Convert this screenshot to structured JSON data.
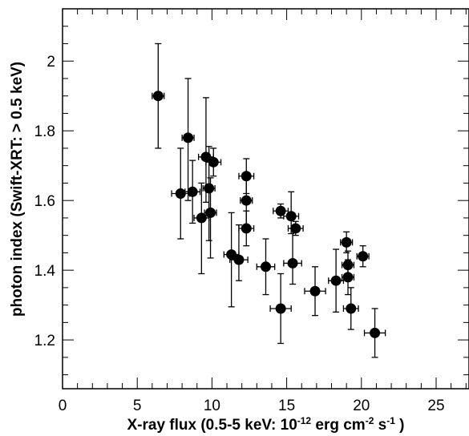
{
  "chart_data": {
    "type": "scatter",
    "title": "",
    "xlabel": "X-ray flux (0.5-5 keV: 10^-12 erg cm^-2 s^-1 )",
    "ylabel": "photon index (Swift-XRT: > 0.5 keV)",
    "xlim": [
      0,
      27.2
    ],
    "ylim": [
      1.06,
      2.15
    ],
    "grid": false,
    "x_ticks": [
      0,
      5,
      10,
      15,
      20,
      25
    ],
    "y_ticks": [
      1.2,
      1.4,
      1.6,
      1.8,
      2.0
    ],
    "y_tick_labels": [
      "1.2",
      "1.4",
      "1.6",
      "1.8",
      "2"
    ],
    "points": [
      {
        "x": 6.4,
        "y": 1.9,
        "xerr": 0.4,
        "yerr_low": 0.15,
        "yerr_high": 0.15
      },
      {
        "x": 8.4,
        "y": 1.78,
        "xerr": 0.4,
        "yerr_low": 0.18,
        "yerr_high": 0.17
      },
      {
        "x": 7.9,
        "y": 1.62,
        "xerr": 0.6,
        "yerr_low": 0.13,
        "yerr_high": 0.13
      },
      {
        "x": 8.7,
        "y": 1.625,
        "xerr": 0.5,
        "yerr_low": 0.09,
        "yerr_high": 0.09
      },
      {
        "x": 9.6,
        "y": 1.725,
        "xerr": 0.5,
        "yerr_low": 0.13,
        "yerr_high": 0.17
      },
      {
        "x": 10.1,
        "y": 1.71,
        "xerr": 0.5,
        "yerr_low": 0.04,
        "yerr_high": 0.04
      },
      {
        "x": 9.8,
        "y": 1.635,
        "xerr": 0.4,
        "yerr_low": 0.15,
        "yerr_high": 0.12
      },
      {
        "x": 9.3,
        "y": 1.55,
        "xerr": 0.5,
        "yerr_low": 0.16,
        "yerr_high": 0.1
      },
      {
        "x": 9.9,
        "y": 1.565,
        "xerr": 0.4,
        "yerr_low": 0.13,
        "yerr_high": 0.1
      },
      {
        "x": 12.3,
        "y": 1.67,
        "xerr": 0.5,
        "yerr_low": 0.05,
        "yerr_high": 0.05
      },
      {
        "x": 12.3,
        "y": 1.6,
        "xerr": 0.4,
        "yerr_low": 0.08,
        "yerr_high": 0.07
      },
      {
        "x": 12.3,
        "y": 1.52,
        "xerr": 0.5,
        "yerr_low": 0.05,
        "yerr_high": 0.05
      },
      {
        "x": 11.3,
        "y": 1.445,
        "xerr": 0.5,
        "yerr_low": 0.15,
        "yerr_high": 0.12
      },
      {
        "x": 11.8,
        "y": 1.43,
        "xerr": 0.6,
        "yerr_low": 0.06,
        "yerr_high": 0.1
      },
      {
        "x": 13.6,
        "y": 1.41,
        "xerr": 0.6,
        "yerr_low": 0.08,
        "yerr_high": 0.08
      },
      {
        "x": 14.6,
        "y": 1.57,
        "xerr": 0.5,
        "yerr_low": 0.02,
        "yerr_high": 0.02
      },
      {
        "x": 15.3,
        "y": 1.555,
        "xerr": 0.5,
        "yerr_low": 0.05,
        "yerr_high": 0.07
      },
      {
        "x": 15.6,
        "y": 1.52,
        "xerr": 0.5,
        "yerr_low": 0.02,
        "yerr_high": 0.02
      },
      {
        "x": 15.4,
        "y": 1.42,
        "xerr": 0.6,
        "yerr_low": 0.06,
        "yerr_high": 0.1
      },
      {
        "x": 14.6,
        "y": 1.29,
        "xerr": 0.7,
        "yerr_low": 0.1,
        "yerr_high": 0.1
      },
      {
        "x": 16.9,
        "y": 1.34,
        "xerr": 0.7,
        "yerr_low": 0.07,
        "yerr_high": 0.07
      },
      {
        "x": 18.3,
        "y": 1.37,
        "xerr": 0.5,
        "yerr_low": 0.09,
        "yerr_high": 0.09
      },
      {
        "x": 19.0,
        "y": 1.48,
        "xerr": 0.4,
        "yerr_low": 0.03,
        "yerr_high": 0.03
      },
      {
        "x": 19.1,
        "y": 1.415,
        "xerr": 0.4,
        "yerr_low": 0.04,
        "yerr_high": 0.04
      },
      {
        "x": 19.1,
        "y": 1.38,
        "xerr": 0.4,
        "yerr_low": 0.05,
        "yerr_high": 0.05
      },
      {
        "x": 20.1,
        "y": 1.44,
        "xerr": 0.4,
        "yerr_low": 0.03,
        "yerr_high": 0.03
      },
      {
        "x": 19.3,
        "y": 1.29,
        "xerr": 0.5,
        "yerr_low": 0.06,
        "yerr_high": 0.06
      },
      {
        "x": 20.9,
        "y": 1.22,
        "xerr": 0.7,
        "yerr_low": 0.07,
        "yerr_high": 0.07
      }
    ]
  }
}
